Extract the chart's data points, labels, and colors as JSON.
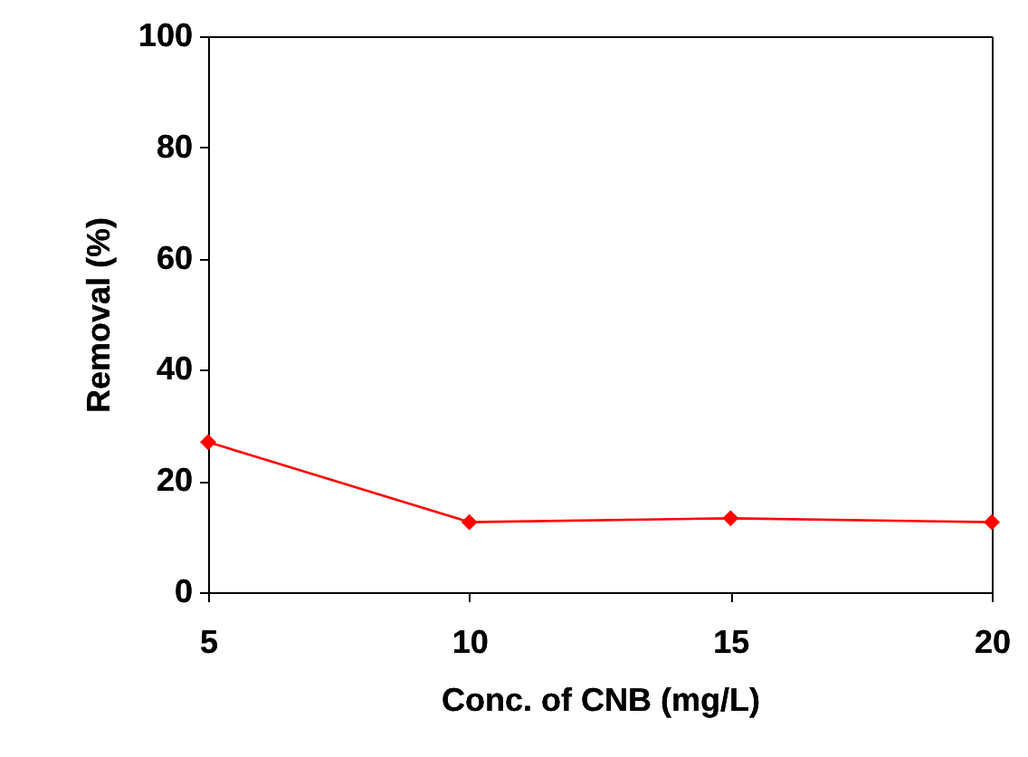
{
  "chart_data": {
    "type": "line",
    "xlabel": "Conc. of  CNB (mg/L)",
    "ylabel": "Removal (%)",
    "x": [
      5,
      10,
      15,
      20
    ],
    "series": [
      {
        "color": "#ff0000",
        "values": [
          27,
          12.6,
          13.3,
          12.6
        ]
      }
    ],
    "xlim": [
      5,
      20
    ],
    "xticks": [
      5,
      10,
      15,
      20
    ],
    "ylim": [
      0,
      100
    ],
    "yticks": [
      0,
      20,
      40,
      60,
      80,
      100
    ],
    "grid": false,
    "legend": false,
    "marker": "diamond",
    "line_style": "solid"
  }
}
